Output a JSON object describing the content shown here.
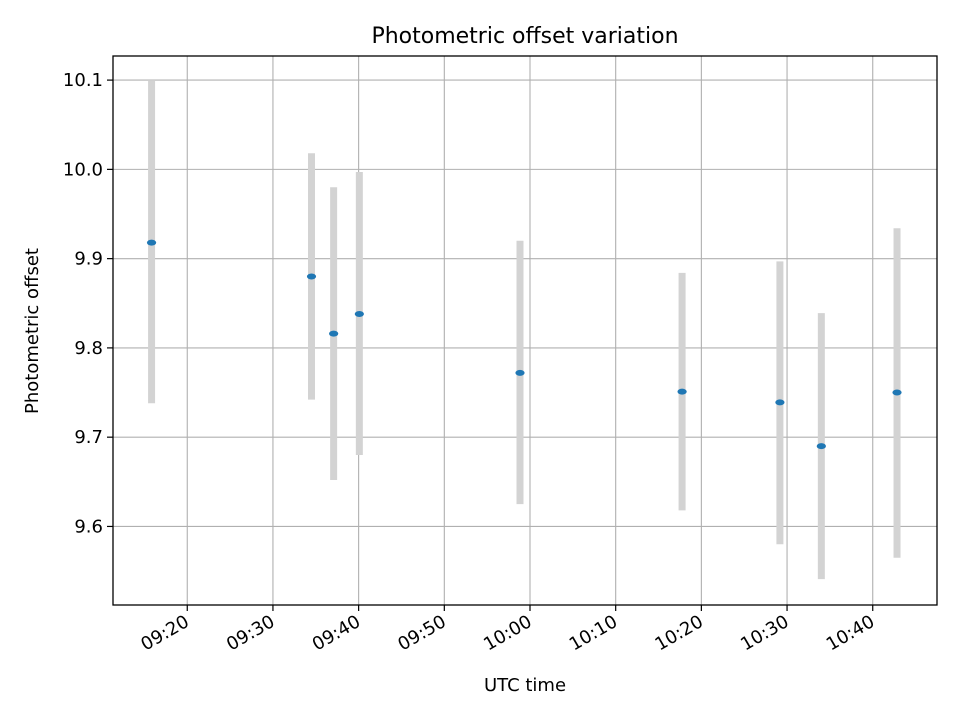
{
  "chart_data": {
    "type": "scatter",
    "title": "Photometric offset variation",
    "xlabel": "UTC time",
    "ylabel": "Photometric offset",
    "x_axis_type": "time",
    "xlim": [
      "09:11:20",
      "10:47:30"
    ],
    "ylim": [
      9.512,
      10.127
    ],
    "x_ticks": [
      "09:20",
      "09:30",
      "09:40",
      "09:50",
      "10:00",
      "10:10",
      "10:20",
      "10:30",
      "10:40"
    ],
    "y_ticks": [
      "9.6",
      "9.7",
      "9.8",
      "9.9",
      "10.0",
      "10.1"
    ],
    "grid": true,
    "marker_color": "#1f77b4",
    "errorbar_color": "#d3d3d3",
    "points": [
      {
        "x": "09:15:50",
        "y": 9.918,
        "low": 9.738,
        "high": 10.1
      },
      {
        "x": "09:34:30",
        "y": 9.88,
        "low": 9.742,
        "high": 10.018
      },
      {
        "x": "09:37:05",
        "y": 9.816,
        "low": 9.652,
        "high": 9.98
      },
      {
        "x": "09:40:05",
        "y": 9.838,
        "low": 9.68,
        "high": 9.997
      },
      {
        "x": "09:58:50",
        "y": 9.772,
        "low": 9.625,
        "high": 9.92
      },
      {
        "x": "10:17:45",
        "y": 9.751,
        "low": 9.618,
        "high": 9.884
      },
      {
        "x": "10:29:10",
        "y": 9.739,
        "low": 9.58,
        "high": 9.897
      },
      {
        "x": "10:34:00",
        "y": 9.69,
        "low": 9.541,
        "high": 9.839
      },
      {
        "x": "10:42:50",
        "y": 9.75,
        "low": 9.565,
        "high": 9.934
      }
    ]
  }
}
